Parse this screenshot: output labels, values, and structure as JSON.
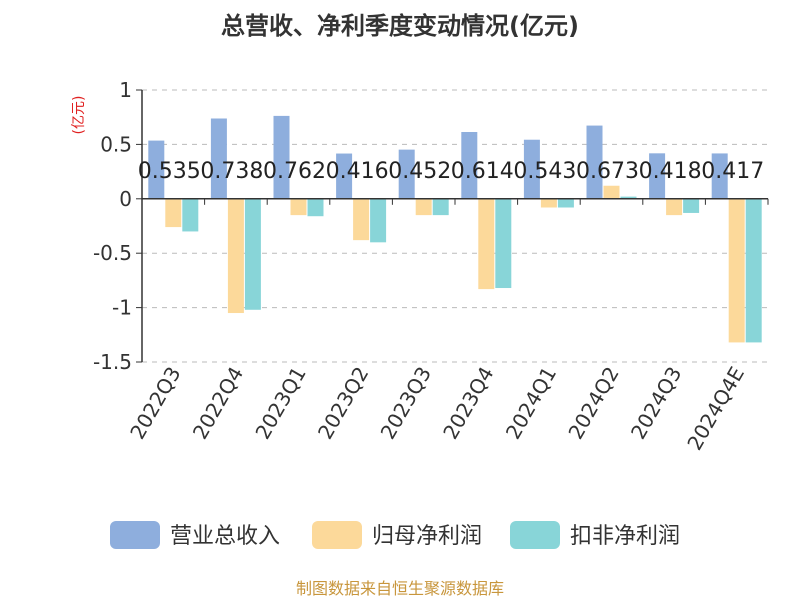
{
  "chart_data": {
    "type": "bar",
    "title": "总营收、净利季度变动情况(亿元)",
    "ylabel": "(亿元)",
    "categories": [
      "2022Q3",
      "2022Q4",
      "2023Q1",
      "2023Q2",
      "2023Q3",
      "2023Q4",
      "2024Q1",
      "2024Q2",
      "2024Q3",
      "2024Q4E"
    ],
    "ylim": [
      -1.5,
      1
    ],
    "yticks": [
      "1",
      "0.5",
      "0",
      "-0.5",
      "-1",
      "-1.5"
    ],
    "grid": true,
    "legend_position": "bottom",
    "series": [
      {
        "name": "营业总收入",
        "color": "#8eaedd",
        "values": [
          0.535,
          0.738,
          0.762,
          0.416,
          0.452,
          0.614,
          0.543,
          0.673,
          0.418,
          0.417
        ],
        "labels": [
          "0.535",
          "0.738",
          "0.762",
          "0.416",
          "0.452",
          "0.614",
          "0.543",
          "0.673",
          "0.418",
          "0.417"
        ]
      },
      {
        "name": "归母净利润",
        "color": "#fcd99a",
        "values": [
          -0.26,
          -1.05,
          -0.15,
          -0.38,
          -0.15,
          -0.83,
          -0.08,
          0.12,
          -0.15,
          -1.32
        ]
      },
      {
        "name": "扣非净利润",
        "color": "#88d5d8",
        "values": [
          -0.3,
          -1.02,
          -0.16,
          -0.4,
          -0.15,
          -0.82,
          -0.08,
          0.02,
          -0.13,
          -1.32
        ]
      }
    ]
  },
  "source": "制图数据来自恒生聚源数据库"
}
